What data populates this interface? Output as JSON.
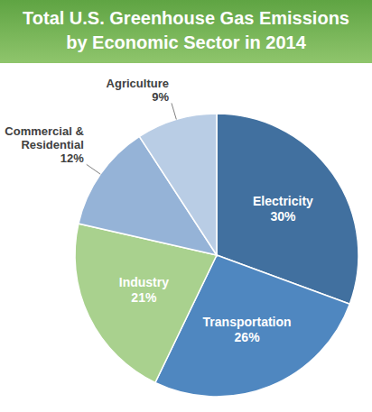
{
  "chart_data": {
    "type": "pie",
    "title": "Total U.S. Greenhouse Gas Emissions\nby Economic Sector in 2014",
    "categories": [
      "Electricity",
      "Transportation",
      "Industry",
      "Commercial &\nResidential",
      "Agriculture"
    ],
    "values": [
      30,
      26,
      21,
      12,
      9
    ],
    "value_labels": [
      "30%",
      "26%",
      "21%",
      "12%",
      "9%"
    ],
    "colors": [
      "#41709f",
      "#4f87c0",
      "#a9d18e",
      "#95b3d7",
      "#b9cde5"
    ],
    "data_labels": true
  }
}
